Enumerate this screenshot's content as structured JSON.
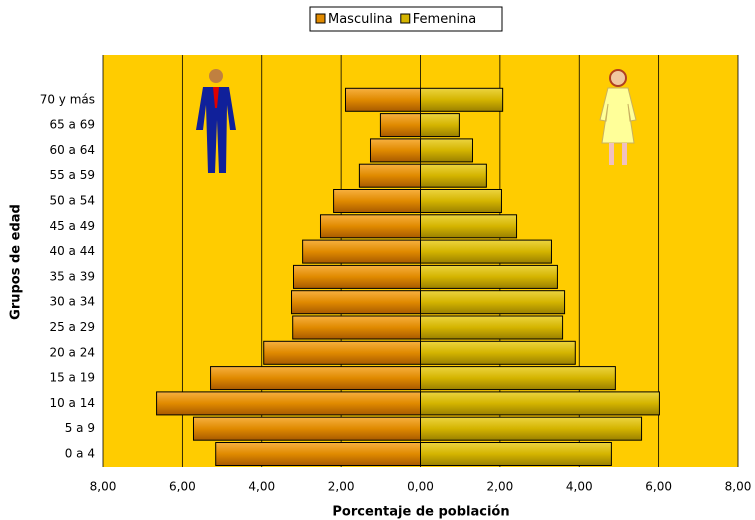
{
  "chart_data": {
    "type": "pyramid",
    "x_label": "Porcentaje de población",
    "y_label": "Grupos de edad",
    "categories": [
      "0 a 4",
      "5 a 9",
      "10 a 14",
      "15 a 19",
      "20 a 24",
      "25 a 29",
      "30 a 34",
      "35 a 39",
      "40 a 44",
      "45 a 49",
      "50 a 54",
      "55 a 59",
      "60 a 64",
      "65 a 69",
      "70 y más"
    ],
    "series": [
      {
        "name": "Masculina",
        "color": "#e08a00",
        "values": [
          -5.16,
          -5.72,
          -6.65,
          -5.29,
          -3.95,
          -3.22,
          -3.25,
          -3.2,
          -2.97,
          -2.52,
          -2.19,
          -1.54,
          -1.26,
          -1.01,
          -1.89
        ]
      },
      {
        "name": "Femenina",
        "color": "#d4b400",
        "values": [
          4.81,
          5.57,
          6.02,
          4.91,
          3.9,
          3.58,
          3.63,
          3.45,
          3.3,
          2.42,
          2.04,
          1.66,
          1.31,
          0.98,
          2.07
        ]
      }
    ],
    "xlim": [
      -8,
      8
    ],
    "xticks": [
      {
        "value": -8,
        "label": "8,00"
      },
      {
        "value": -6,
        "label": "6,00"
      },
      {
        "value": -4,
        "label": "4,00"
      },
      {
        "value": -2,
        "label": "2,00"
      },
      {
        "value": 0,
        "label": "0,00"
      },
      {
        "value": 2,
        "label": "2,00"
      },
      {
        "value": 4,
        "label": "4,00"
      },
      {
        "value": 6,
        "label": "6,00"
      },
      {
        "value": 8,
        "label": "8,00"
      }
    ],
    "grid": true,
    "background": "#ffcc00"
  }
}
